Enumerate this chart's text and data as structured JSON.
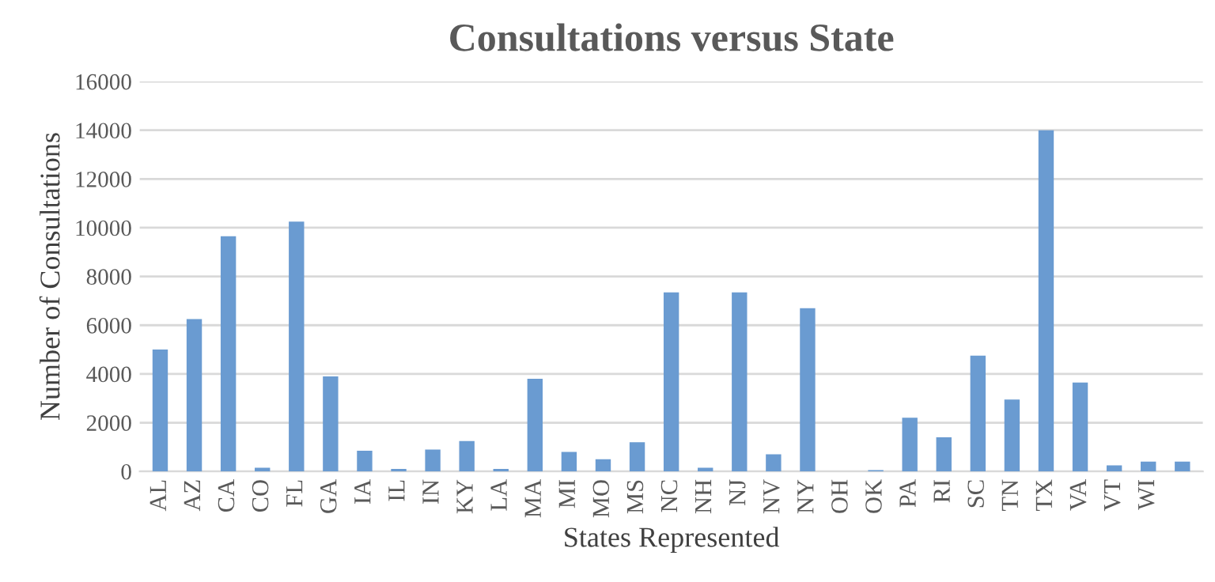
{
  "chart_data": {
    "type": "bar",
    "title": "Consultations versus State",
    "xlabel": "States Represented",
    "ylabel": "Number of Consultations",
    "categories": [
      "AL",
      "AZ",
      "CA",
      "CO",
      "FL",
      "GA",
      "IA",
      "IL",
      "IN",
      "KY",
      "LA",
      "MA",
      "MI",
      "MO",
      "MS",
      "NC",
      "NH",
      "NJ",
      "NV",
      "NY",
      "OH",
      "OK",
      "PA",
      "RI",
      "SC",
      "TN",
      "TX",
      "VA",
      "VT",
      "WI",
      null
    ],
    "values": [
      5000,
      6250,
      9650,
      150,
      10250,
      3900,
      850,
      100,
      900,
      1250,
      100,
      3800,
      800,
      500,
      1200,
      7350,
      150,
      7350,
      700,
      6700,
      0,
      50,
      2200,
      1400,
      4750,
      2950,
      14000,
      3650,
      250,
      400,
      400
    ],
    "color": "#6a9bd1",
    "ylim": [
      0,
      16000
    ],
    "yticks": [
      0,
      2000,
      4000,
      6000,
      8000,
      10000,
      12000,
      14000,
      16000
    ],
    "grid": "y"
  }
}
